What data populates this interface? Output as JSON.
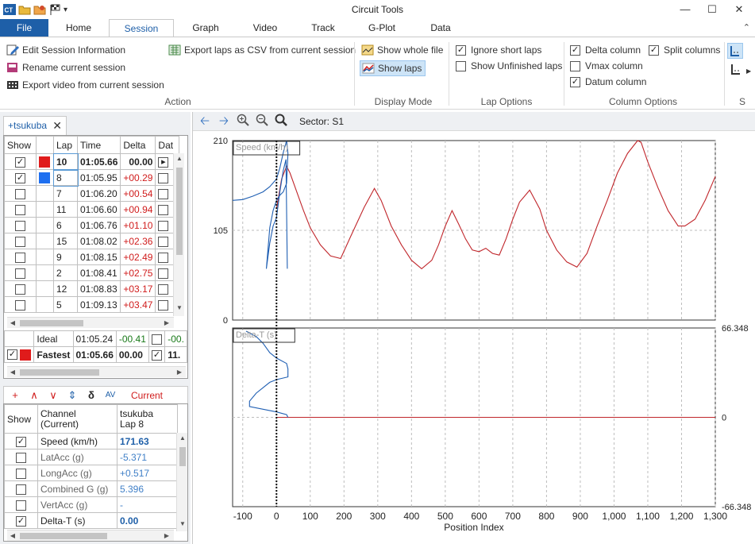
{
  "window": {
    "title": "Circuit Tools"
  },
  "tabs": [
    "File",
    "Home",
    "Session",
    "Graph",
    "Video",
    "Track",
    "G-Plot",
    "Data"
  ],
  "active_tab": "Session",
  "ribbon": {
    "action": {
      "label": "Action",
      "edit_session": "Edit Session Information",
      "rename_session": "Rename current session",
      "export_video": "Export video from current session",
      "export_csv": "Export laps as CSV from current session"
    },
    "display_mode": {
      "label": "Display Mode",
      "show_whole_file": "Show whole file",
      "show_laps": "Show laps"
    },
    "lap_options": {
      "label": "Lap Options",
      "ignore_short": "Ignore short laps",
      "show_unfinished": "Show Unfinished laps"
    },
    "column_options": {
      "label": "Column Options",
      "delta_col": "Delta column",
      "split_cols": "Split columns",
      "vmax_col": "Vmax column",
      "datum_col": "Datum column"
    },
    "cut_label": "S"
  },
  "session_tab": {
    "name": "+tsukuba",
    "close": "✕"
  },
  "lap_table": {
    "headers": [
      "Show",
      "",
      "Lap",
      "Time",
      "Delta",
      "Dat"
    ],
    "rows": [
      {
        "checked": true,
        "color": "#e01b1b",
        "lap": "10",
        "time": "01:05.66",
        "delta": "00.00",
        "delta_class": "bold",
        "lap_bold": true
      },
      {
        "checked": true,
        "color": "#1e6ff0",
        "lap": "8",
        "time": "01:05.95",
        "delta": "+00.29",
        "delta_class": "red"
      },
      {
        "checked": false,
        "color": "",
        "lap": "7",
        "time": "01:06.20",
        "delta": "+00.54",
        "delta_class": "red"
      },
      {
        "checked": false,
        "color": "",
        "lap": "11",
        "time": "01:06.60",
        "delta": "+00.94",
        "delta_class": "red"
      },
      {
        "checked": false,
        "color": "",
        "lap": "6",
        "time": "01:06.76",
        "delta": "+01.10",
        "delta_class": "red"
      },
      {
        "checked": false,
        "color": "",
        "lap": "15",
        "time": "01:08.02",
        "delta": "+02.36",
        "delta_class": "red"
      },
      {
        "checked": false,
        "color": "",
        "lap": "9",
        "time": "01:08.15",
        "delta": "+02.49",
        "delta_class": "red"
      },
      {
        "checked": false,
        "color": "",
        "lap": "2",
        "time": "01:08.41",
        "delta": "+02.75",
        "delta_class": "red"
      },
      {
        "checked": false,
        "color": "",
        "lap": "12",
        "time": "01:08.83",
        "delta": "+03.17",
        "delta_class": "red"
      },
      {
        "checked": false,
        "color": "",
        "lap": "5",
        "time": "01:09.13",
        "delta": "+03.47",
        "delta_class": "red"
      }
    ],
    "ideal": {
      "label": "Ideal",
      "time": "01:05.24",
      "delta": "-00.41",
      "dat": "-00."
    },
    "fastest": {
      "label": "Fastest",
      "time": "01:05.66",
      "delta": "00.00",
      "dat": "11."
    }
  },
  "channel_tools": {
    "current_label": "Current",
    "icons": [
      "+",
      "∧",
      "∨",
      "⇕",
      "δ",
      "AV"
    ]
  },
  "channel_table": {
    "header_show": "Show",
    "header_channel": "Channel\n(Current)",
    "header_lap": "tsukuba\nLap 8",
    "rows": [
      {
        "checked": true,
        "name": "Speed (km/h)",
        "value": "171.63",
        "active": true,
        "value_bold": true
      },
      {
        "checked": false,
        "name": "LatAcc (g)",
        "value": "-5.371",
        "active": false
      },
      {
        "checked": false,
        "name": "LongAcc (g)",
        "value": "+0.517",
        "active": false
      },
      {
        "checked": false,
        "name": "Combined G (g)",
        "value": "5.396",
        "active": false
      },
      {
        "checked": false,
        "name": "VertAcc (g)",
        "value": "-",
        "active": false
      },
      {
        "checked": true,
        "name": "Delta-T (s)",
        "value": "0.00",
        "active": true,
        "value_bold": true
      }
    ]
  },
  "graph_toolbar": {
    "sector": "Sector: S1"
  },
  "chart_data": {
    "type": "line",
    "xlabel": "Position Index",
    "x_ticks": [
      "-100",
      "0",
      "100",
      "200",
      "300",
      "400",
      "500",
      "600",
      "700",
      "800",
      "900",
      "1,000",
      "1,100",
      "1,200",
      "1,300"
    ],
    "xlim": [
      -130,
      1300
    ],
    "cursor_x": 0,
    "panels": [
      {
        "name": "Speed (km/h)",
        "ylim": [
          0,
          210
        ],
        "y_ticks": [
          "210",
          "105",
          "0"
        ],
        "series": [
          {
            "name": "Lap 10",
            "color": "#c0262b",
            "x": [
              0,
              15,
              30,
              40,
              60,
              80,
              100,
              130,
              160,
              190,
              220,
              260,
              290,
              310,
              340,
              370,
              400,
              430,
              460,
              480,
              500,
              520,
              540,
              560,
              580,
              600,
              620,
              640,
              660,
              680,
              700,
              720,
              750,
              780,
              800,
              830,
              860,
              890,
              920,
              950,
              980,
              1010,
              1040,
              1070,
              1080,
              1100,
              1130,
              1160,
              1190,
              1210,
              1240,
              1270,
              1300
            ],
            "y": [
              130,
              165,
              180,
              172,
              150,
              128,
              108,
              88,
              75,
              72,
              98,
              132,
              154,
              140,
              110,
              88,
              70,
              60,
              70,
              88,
              110,
              128,
              112,
              95,
              82,
              80,
              84,
              78,
              76,
              95,
              118,
              138,
              152,
              130,
              105,
              82,
              68,
              62,
              78,
              110,
              140,
              172,
              195,
              210,
              208,
              185,
              155,
              128,
              110,
              110,
              118,
              140,
              168
            ]
          },
          {
            "name": "Lap 8",
            "color": "#1f5fb3",
            "x": [
              -130,
              -100,
              -70,
              -40,
              -20,
              0,
              10,
              20,
              30,
              34,
              30,
              20,
              10,
              0,
              -10,
              -20,
              -30,
              -20,
              -10,
              0,
              10,
              20,
              28,
              32
            ],
            "y": [
              140,
              141,
              145,
              150,
              156,
              165,
              178,
              196,
              210,
              195,
              160,
              150,
              146,
              140,
              128,
              108,
              60,
              90,
              110,
              120,
              150,
              175,
              188,
              60
            ],
            "segments_note": ""
          }
        ]
      },
      {
        "name": "Delta-T (s)",
        "ylim": [
          -66.348,
          66.348
        ],
        "y_ticks": [
          "66.348",
          "0",
          "-66.348"
        ],
        "series": [
          {
            "name": "Lap 10",
            "color": "#c0262b",
            "x": [
              0,
              1300
            ],
            "y": [
              0,
              0
            ]
          },
          {
            "name": "Lap 8",
            "color": "#1f5fb3",
            "x": [
              -90,
              -60,
              -40,
              -20,
              0,
              30,
              34,
              34,
              0,
              -20,
              -40,
              -60,
              -80,
              -80,
              0,
              30,
              34,
              34
            ],
            "y": [
              64,
              60,
              55,
              48,
              44,
              40,
              36,
              30,
              28,
              26,
              22,
              18,
              12,
              8,
              4,
              2,
              0,
              0
            ]
          }
        ]
      }
    ]
  }
}
